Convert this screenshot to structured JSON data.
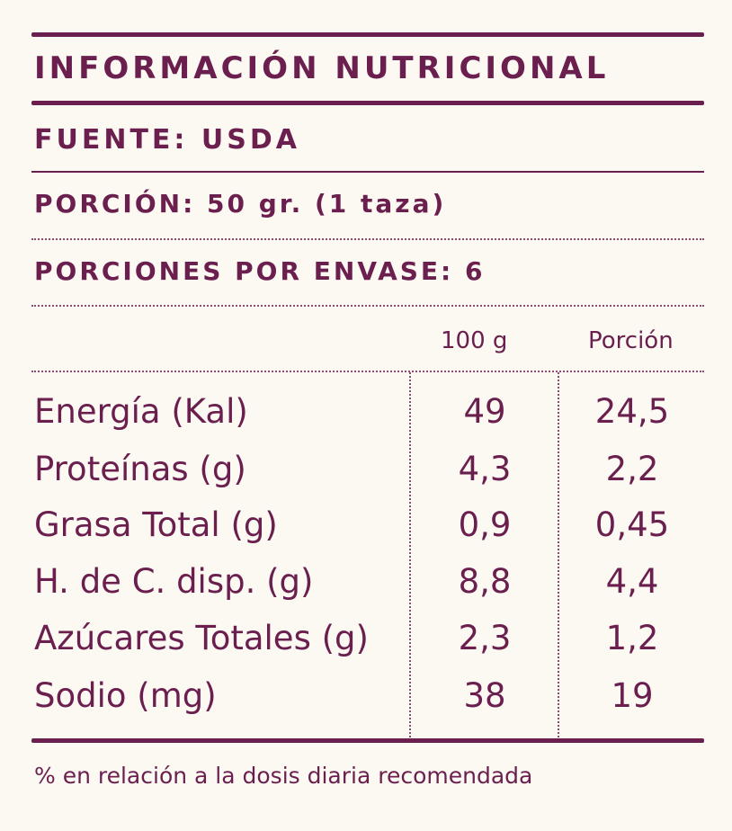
{
  "title": "INFORMACIÓN NUTRICIONAL",
  "source": "FUENTE: USDA",
  "serving": "PORCIÓN: 50 gr. (1 taza)",
  "servings_per_container": "PORCIONES POR ENVASE: 6",
  "columns": {
    "per_100g": "100 g",
    "per_serving": "Porción"
  },
  "rows": [
    {
      "label": "Energía (Kal)",
      "per_100g": "49",
      "per_serving": "24,5"
    },
    {
      "label": "Proteínas (g)",
      "per_100g": "4,3",
      "per_serving": "2,2"
    },
    {
      "label": "Grasa Total (g)",
      "per_100g": "0,9",
      "per_serving": "0,45"
    },
    {
      "label": "H. de C. disp. (g)",
      "per_100g": "8,8",
      "per_serving": "4,4"
    },
    {
      "label": "Azúcares Totales (g)",
      "per_100g": "2,3",
      "per_serving": "1,2"
    },
    {
      "label": "Sodio (mg)",
      "per_100g": "38",
      "per_serving": "19"
    }
  ],
  "footnote": "% en relación a la dosis diaria recomendada",
  "colors": {
    "primary": "#6b1f4f",
    "background": "#fbf9f1"
  }
}
